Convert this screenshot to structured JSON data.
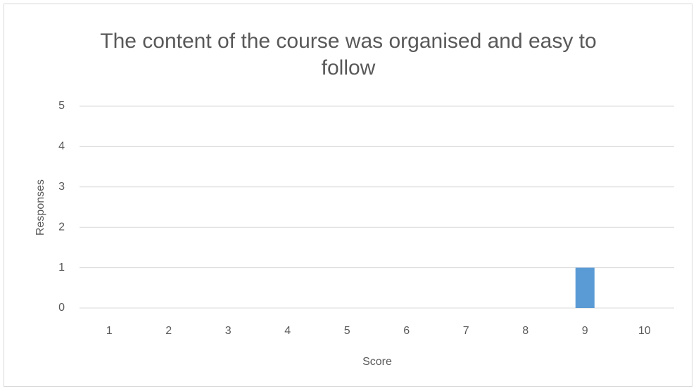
{
  "chart_data": {
    "type": "bar",
    "title": "The content of the course was organised and easy to follow",
    "x_label": "Score",
    "y_label": "Responses",
    "categories": [
      "1",
      "2",
      "3",
      "4",
      "5",
      "6",
      "7",
      "8",
      "9",
      "10"
    ],
    "values": [
      0,
      0,
      0,
      0,
      0,
      0,
      0,
      0,
      1,
      0
    ],
    "color": "#5b9bd5",
    "ylim": [
      0,
      5
    ],
    "yticks": [
      0,
      1,
      2,
      3,
      4,
      5
    ],
    "grid": true
  }
}
